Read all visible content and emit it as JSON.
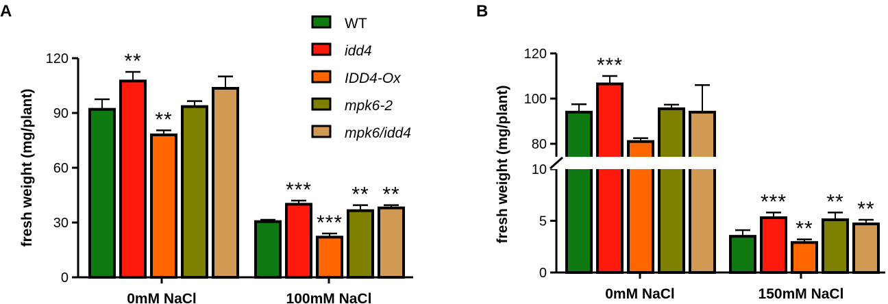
{
  "colors": {
    "WT": "#0f7a12",
    "idd4": "#ff1a0d",
    "IDD4-Ox": "#ff6600",
    "mpk6-2": "#7f7f00",
    "mpk6/idd4": "#d09a55"
  },
  "legend": [
    {
      "label": "WT",
      "italic": false
    },
    {
      "label": "idd4",
      "italic": true
    },
    {
      "label": "IDD4-Ox",
      "italic": true
    },
    {
      "label": "mpk6-2",
      "italic": true
    },
    {
      "label": "mpk6/idd4",
      "italic": true
    }
  ],
  "chart_data": [
    {
      "panel": "A",
      "type": "bar",
      "ylabel": "fresh weight (mg/plant)",
      "ylim": [
        0,
        120
      ],
      "yticks": [
        "0",
        "30",
        "60",
        "90",
        "120"
      ],
      "categories": [
        "0mM NaCl",
        "100mM NaCl"
      ],
      "series": [
        {
          "name": "WT",
          "values": [
            92,
            30.5
          ],
          "errors": [
            5.5,
            1
          ],
          "sig": [
            "",
            ""
          ]
        },
        {
          "name": "idd4",
          "values": [
            107.5,
            40
          ],
          "errors": [
            5,
            2
          ],
          "sig": [
            "**",
            "***"
          ]
        },
        {
          "name": "IDD4-Ox",
          "values": [
            78,
            22
          ],
          "errors": [
            2.5,
            2
          ],
          "sig": [
            "**",
            "***"
          ]
        },
        {
          "name": "mpk6-2",
          "values": [
            93.5,
            36.5
          ],
          "errors": [
            3,
            3
          ],
          "sig": [
            "",
            "**"
          ]
        },
        {
          "name": "mpk6/idd4",
          "values": [
            103.5,
            38
          ],
          "errors": [
            6.5,
            1.5
          ],
          "sig": [
            "",
            "**"
          ]
        }
      ]
    },
    {
      "panel": "B",
      "type": "bar",
      "ylabel": "fresh weight (mg/plant)",
      "broken_axis": {
        "lower": [
          0,
          10
        ],
        "upper": [
          75,
          120
        ]
      },
      "yticks": [
        "0",
        "5",
        "10",
        "80",
        "100",
        "120"
      ],
      "categories": [
        "0mM NaCl",
        "150mM NaCl"
      ],
      "series": [
        {
          "name": "WT",
          "values": [
            94,
            3.5
          ],
          "errors": [
            3.5,
            0.6
          ],
          "sig": [
            "",
            ""
          ]
        },
        {
          "name": "idd4",
          "values": [
            106.5,
            5.3
          ],
          "errors": [
            3.5,
            0.5
          ],
          "sig": [
            "***",
            "***"
          ]
        },
        {
          "name": "IDD4-Ox",
          "values": [
            81,
            2.9
          ],
          "errors": [
            1.5,
            0.3
          ],
          "sig": [
            "",
            "**"
          ]
        },
        {
          "name": "mpk6-2",
          "values": [
            95.5,
            5.1
          ],
          "errors": [
            1.8,
            0.7
          ],
          "sig": [
            "",
            "**"
          ]
        },
        {
          "name": "mpk6/idd4",
          "values": [
            94,
            4.7
          ],
          "errors": [
            12,
            0.4
          ],
          "sig": [
            "",
            "**"
          ]
        }
      ]
    }
  ]
}
